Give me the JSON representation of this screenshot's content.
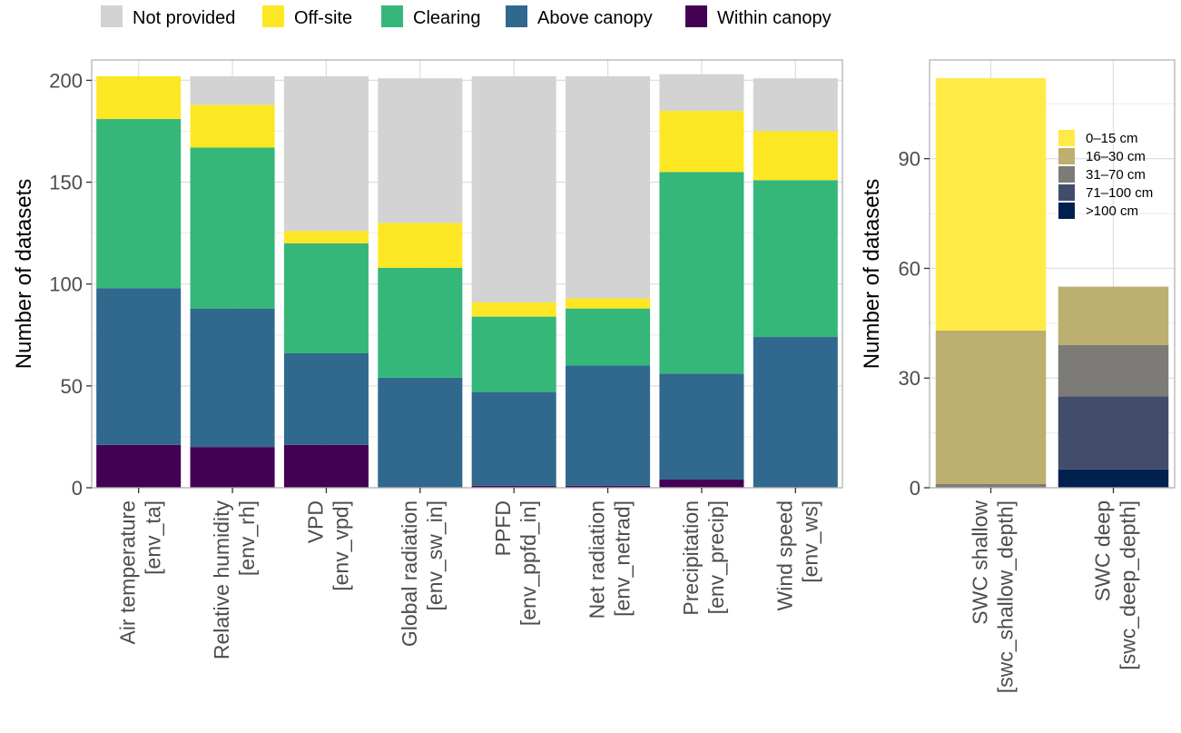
{
  "chart_data": [
    {
      "type": "bar",
      "stacked": true,
      "ylabel": "Number of datasets",
      "ylim": [
        0,
        210
      ],
      "yticks": [
        0,
        50,
        100,
        150,
        200
      ],
      "grid": true,
      "legend_position": "top",
      "categories": [
        [
          "Air temperature",
          "[env_ta]"
        ],
        [
          "Relative humidity",
          "[env_rh]"
        ],
        [
          "VPD",
          "[env_vpd]"
        ],
        [
          "Global radiation",
          "[env_sw_in]"
        ],
        [
          "PPFD",
          "[env_ppfd_in]"
        ],
        [
          "Net radiation",
          "[env_netrad]"
        ],
        [
          "Precipitation",
          "[env_precip]"
        ],
        [
          "Wind speed",
          "[env_ws]"
        ]
      ],
      "series": [
        {
          "name": "Within canopy",
          "color": "#440154",
          "values": [
            21,
            20,
            21,
            0,
            1,
            1,
            4,
            0
          ]
        },
        {
          "name": "Above canopy",
          "color": "#31688e",
          "values": [
            77,
            68,
            45,
            54,
            46,
            59,
            52,
            74
          ]
        },
        {
          "name": "Clearing",
          "color": "#35b779",
          "values": [
            83,
            79,
            54,
            54,
            37,
            28,
            99,
            77
          ]
        },
        {
          "name": "Off-site",
          "color": "#fde725",
          "values": [
            21,
            21,
            6,
            22,
            7,
            5,
            30,
            24
          ]
        },
        {
          "name": "Not provided",
          "color": "#d3d3d3",
          "values": [
            0,
            14,
            76,
            71,
            111,
            109,
            18,
            26
          ]
        }
      ],
      "legend_order": [
        "Not provided",
        "Off-site",
        "Clearing",
        "Above canopy",
        "Within canopy"
      ]
    },
    {
      "type": "bar",
      "stacked": true,
      "ylabel": "Number of datasets",
      "ylim": [
        0,
        117
      ],
      "yticks": [
        0,
        30,
        60,
        90
      ],
      "grid": true,
      "legend_position": "top-right",
      "categories": [
        [
          "SWC shallow",
          "[swc_shallow_depth]"
        ],
        [
          "SWC deep",
          "[swc_deep_depth]"
        ]
      ],
      "series": [
        {
          "name": ">100 cm",
          "color": "#00204d",
          "values": [
            0,
            5
          ]
        },
        {
          "name": "71–100 cm",
          "color": "#414d6b",
          "values": [
            0,
            20
          ]
        },
        {
          "name": "31–70 cm",
          "color": "#7c7b78",
          "values": [
            1,
            14
          ]
        },
        {
          "name": "16–30 cm",
          "color": "#bcaf6f",
          "values": [
            42,
            16
          ]
        },
        {
          "name": "0–15 cm",
          "color": "#ffea46",
          "values": [
            69,
            0
          ]
        }
      ],
      "legend_order": [
        "0–15 cm",
        "16–30 cm",
        "31–70 cm",
        "71–100 cm",
        ">100 cm"
      ]
    }
  ]
}
